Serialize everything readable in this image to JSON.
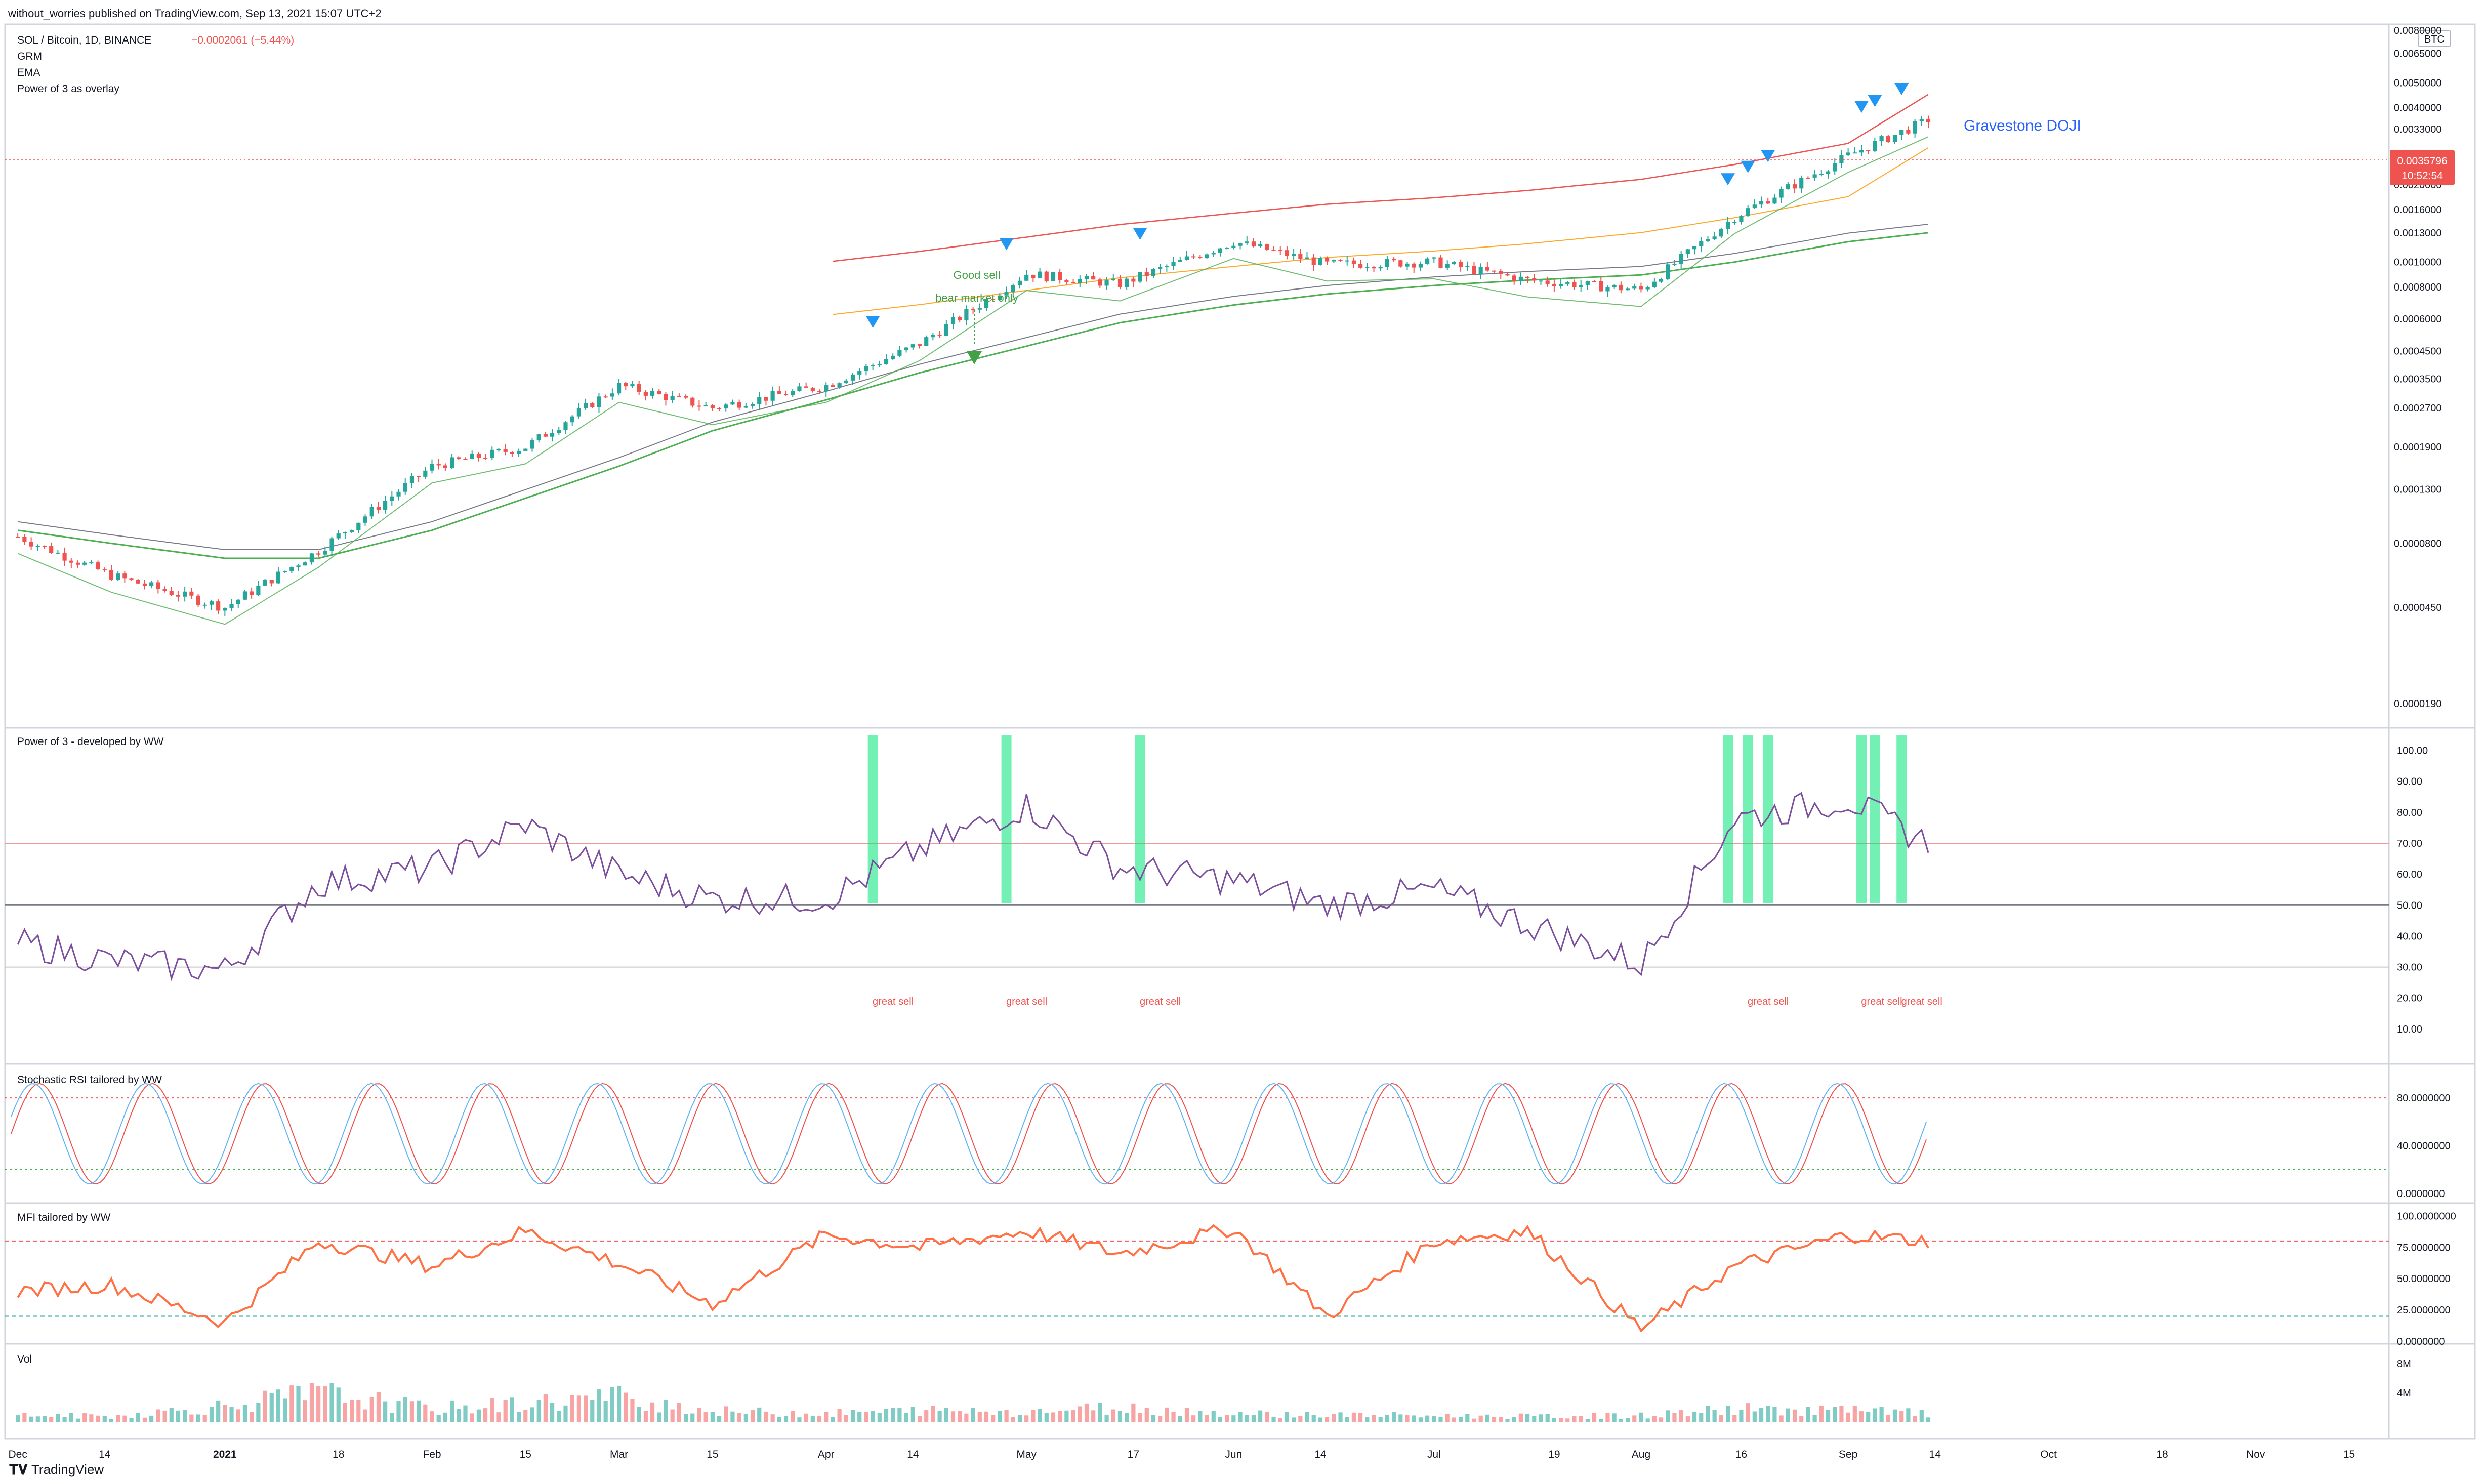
{
  "header": {
    "published": "without_worries published on TradingView.com, Sep 13, 2021 15:07 UTC+2"
  },
  "footer": {
    "brand": "TradingView"
  },
  "price_pane": {
    "symbol_line": "SOL / Bitcoin, 1D, BINANCE",
    "change": "−0.0002061 (−5.44%)",
    "indicators": [
      "GRM",
      "EMA",
      "Power of 3 as overlay"
    ],
    "currency": "BTC",
    "last_price": "0.0035796",
    "countdown": "10:52:54",
    "axis_ticks": [
      "0.0080000",
      "0.0065000",
      "0.0050000",
      "0.0040000",
      "0.0033000",
      "0.0026000",
      "0.0020000",
      "0.0016000",
      "0.0013000",
      "0.0010000",
      "0.0008000",
      "0.0006000",
      "0.0004500",
      "0.0003500",
      "0.0002700",
      "0.0001900",
      "0.0001300",
      "0.0000800",
      "0.0000450",
      "0.0000190"
    ],
    "annotations": {
      "gravestone": "Gravestone DOJI",
      "good_sell": "Good sell",
      "bear_market": "bear market only"
    }
  },
  "power_pane": {
    "title": "Power of 3 - developed by WW",
    "axis_ticks": [
      "100.00",
      "90.00",
      "80.00",
      "70.00",
      "60.00",
      "50.00",
      "40.00",
      "30.00",
      "20.00",
      "10.00"
    ],
    "sell_labels": [
      "great sell",
      "great sell",
      "great sell",
      "great sell",
      "great sell",
      "great sell"
    ]
  },
  "stoch_pane": {
    "title": "Stochastic RSI tailored by WW",
    "axis_ticks": [
      "80.0000000",
      "40.0000000",
      "0.0000000"
    ]
  },
  "mfi_pane": {
    "title": "MFI tailored by WW",
    "axis_ticks": [
      "100.0000000",
      "75.0000000",
      "50.0000000",
      "25.0000000",
      "0.0000000"
    ]
  },
  "vol_pane": {
    "title": "Vol",
    "axis_ticks": [
      "8M",
      "4M"
    ]
  },
  "time_axis": [
    "Dec",
    "14",
    "2021",
    "18",
    "Feb",
    "15",
    "Mar",
    "15",
    "Apr",
    "14",
    "May",
    "17",
    "Jun",
    "14",
    "Jul",
    "19",
    "Aug",
    "16",
    "Sep",
    "14",
    "Oct",
    "18",
    "Nov",
    "15"
  ],
  "colors": {
    "up": "#26a69a",
    "down": "#ef5350",
    "signal": "#2196f3",
    "good_sell": "#4caf50",
    "grm_upper": "#ef5350",
    "grm_mid": "#ffa726",
    "ema_fast": "#4caf50",
    "ema_slow": "#787b86",
    "power_line": "#d32f2f",
    "mfi": "#ff7043",
    "stoch_k": "#ef5350",
    "stoch_d": "#64b5f6"
  },
  "chart_data": [
    {
      "type": "candlestick",
      "title": "SOL / Bitcoin, 1D, BINANCE",
      "scale": "log",
      "x": [
        "2020-12-01",
        "2020-12-15",
        "2021-01-01",
        "2021-01-15",
        "2021-02-01",
        "2021-02-15",
        "2021-03-01",
        "2021-03-15",
        "2021-04-01",
        "2021-04-15",
        "2021-05-01",
        "2021-05-15",
        "2021-06-01",
        "2021-06-15",
        "2021-07-01",
        "2021-07-15",
        "2021-08-01",
        "2021-08-15",
        "2021-09-01",
        "2021-09-13"
      ],
      "close": [
        8.5e-05,
        6e-05,
        4.5e-05,
        7.5e-05,
        0.00016,
        0.00019,
        0.00033,
        0.00027,
        0.00033,
        0.00048,
        0.0009,
        0.00082,
        0.0012,
        0.00098,
        0.001,
        0.00085,
        0.00078,
        0.0015,
        0.0026,
        0.0035796
      ],
      "series": [
        {
          "name": "GRM",
          "values": [
            null,
            null,
            null,
            null,
            null,
            null,
            null,
            null,
            0.001,
            0.0011,
            0.00125,
            0.0014,
            0.00155,
            0.00168,
            0.00178,
            0.0019,
            0.0021,
            0.0024,
            0.0029,
            0.0045
          ]
        },
        {
          "name": "EMA",
          "values": [
            9e-05,
            8e-05,
            7e-05,
            7e-05,
            9e-05,
            0.00012,
            0.00016,
            0.00022,
            0.00029,
            0.00037,
            0.00047,
            0.00058,
            0.00068,
            0.00075,
            0.00081,
            0.00085,
            0.00089,
            0.001,
            0.0012,
            0.0013
          ]
        }
      ],
      "signals": [
        "2021-04-08",
        "2021-04-28",
        "2021-05-18",
        "2021-08-14",
        "2021-08-17",
        "2021-08-20",
        "2021-09-03",
        "2021-09-05",
        "2021-09-09"
      ]
    },
    {
      "type": "line",
      "title": "Power of 3 - developed by WW",
      "ylim": [
        0,
        100
      ],
      "x": [
        "2020-12-01",
        "2020-12-15",
        "2021-01-01",
        "2021-01-15",
        "2021-02-01",
        "2021-02-15",
        "2021-03-01",
        "2021-03-15",
        "2021-04-01",
        "2021-04-15",
        "2021-05-01",
        "2021-05-15",
        "2021-06-01",
        "2021-06-15",
        "2021-07-01",
        "2021-07-15",
        "2021-08-01",
        "2021-08-15",
        "2021-09-01",
        "2021-09-13"
      ],
      "values": [
        38,
        32,
        29,
        57,
        62,
        76,
        60,
        52,
        52,
        68,
        82,
        62,
        58,
        50,
        55,
        44,
        31,
        78,
        84,
        70
      ],
      "levels": [
        70,
        50,
        30
      ]
    },
    {
      "type": "line",
      "title": "Stochastic RSI tailored by WW",
      "ylim": [
        0,
        100
      ],
      "x": [
        "2020-12-01",
        "2020-12-15",
        "2021-01-01",
        "2021-01-15",
        "2021-02-01",
        "2021-02-15",
        "2021-03-01",
        "2021-03-15",
        "2021-04-01",
        "2021-04-15",
        "2021-05-01",
        "2021-05-15",
        "2021-06-01",
        "2021-06-15",
        "2021-07-01",
        "2021-07-15",
        "2021-08-01",
        "2021-08-15",
        "2021-09-01",
        "2021-09-13"
      ],
      "series": [
        {
          "name": "K",
          "values": [
            20,
            25,
            15,
            85,
            60,
            80,
            30,
            40,
            90,
            85,
            15,
            95,
            10,
            90,
            25,
            88,
            10,
            92,
            70,
            20
          ]
        },
        {
          "name": "D",
          "values": [
            25,
            28,
            20,
            80,
            62,
            78,
            35,
            42,
            88,
            82,
            20,
            92,
            15,
            86,
            30,
            85,
            15,
            88,
            74,
            30
          ]
        }
      ],
      "levels": [
        80,
        20
      ]
    },
    {
      "type": "line",
      "title": "MFI tailored by WW",
      "ylim": [
        0,
        100
      ],
      "x": [
        "2020-12-01",
        "2020-12-15",
        "2021-01-01",
        "2021-01-15",
        "2021-02-01",
        "2021-02-15",
        "2021-03-01",
        "2021-03-15",
        "2021-04-01",
        "2021-04-15",
        "2021-05-01",
        "2021-05-15",
        "2021-06-01",
        "2021-06-15",
        "2021-07-01",
        "2021-07-15",
        "2021-08-01",
        "2021-08-15",
        "2021-09-01",
        "2021-09-13"
      ],
      "values": [
        40,
        45,
        15,
        80,
        60,
        88,
        62,
        30,
        85,
        75,
        88,
        70,
        90,
        20,
        80,
        88,
        10,
        60,
        85,
        80
      ],
      "levels": [
        80,
        20
      ]
    },
    {
      "type": "bar",
      "title": "Vol",
      "ylim": [
        0,
        10
      ],
      "x": [
        "2020-12-01",
        "2020-12-15",
        "2021-01-01",
        "2021-01-15",
        "2021-02-01",
        "2021-02-15",
        "2021-03-01",
        "2021-03-15",
        "2021-04-01",
        "2021-04-15",
        "2021-05-01",
        "2021-05-15",
        "2021-06-01",
        "2021-06-15",
        "2021-07-01",
        "2021-07-15",
        "2021-08-01",
        "2021-08-15",
        "2021-09-01",
        "2021-09-13"
      ],
      "values": [
        1.0,
        0.8,
        2.2,
        4.0,
        1.8,
        2.5,
        3.5,
        1.5,
        1.2,
        1.6,
        1.5,
        2.0,
        1.2,
        1.0,
        0.9,
        0.8,
        0.9,
        1.8,
        1.6,
        1.2
      ]
    }
  ]
}
